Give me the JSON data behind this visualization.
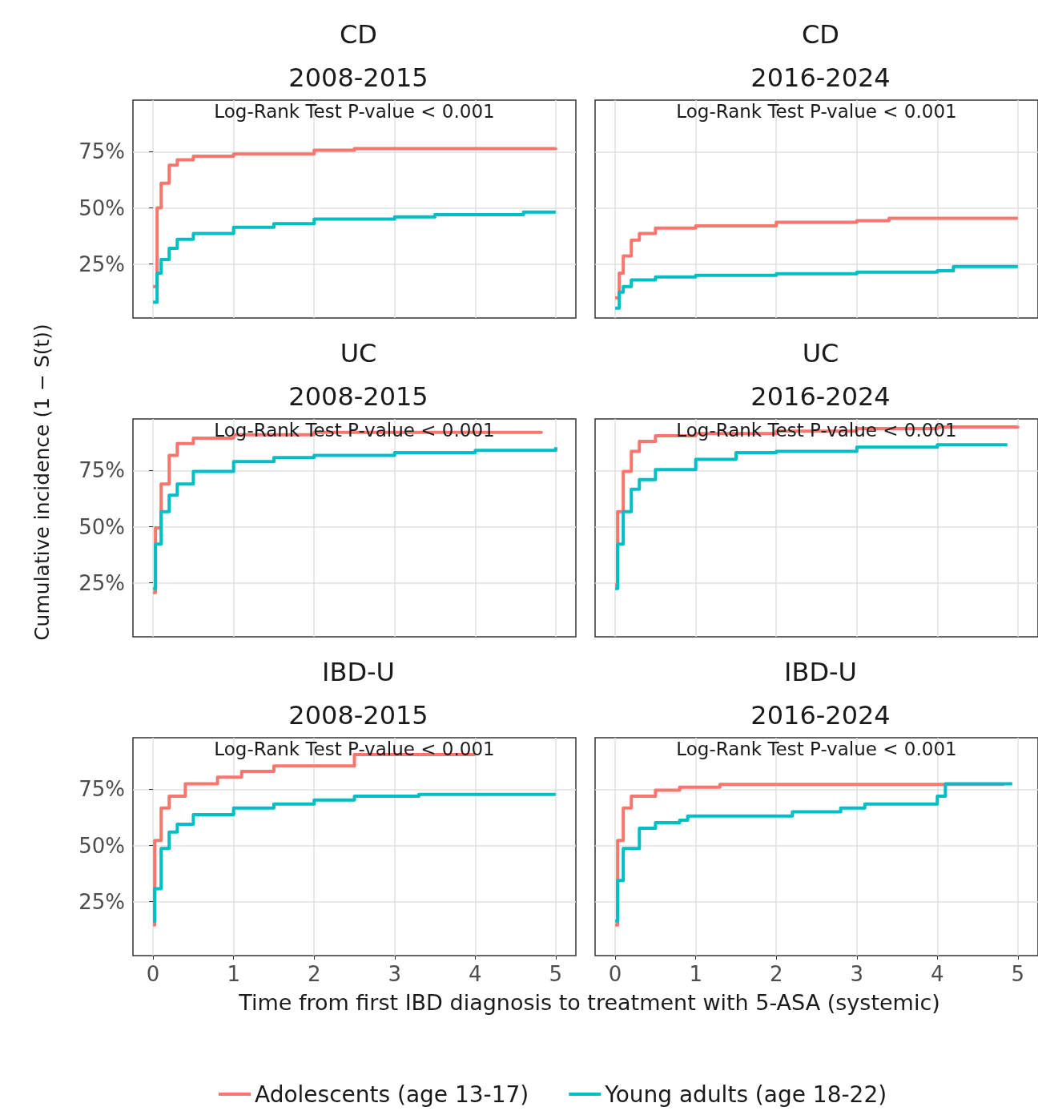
{
  "chart_data": [
    {
      "type": "step",
      "title": "CD",
      "subtitle": "2008-2015",
      "annotations": [
        "Log-Rank Test P-value < 0.001"
      ],
      "xlim": [
        -0.25,
        5.25
      ],
      "ylim": [
        1,
        98
      ],
      "xticks": [
        0,
        1,
        2,
        3,
        4,
        5
      ],
      "yticks": [
        {
          "value": 25,
          "label": "25%"
        },
        {
          "value": 50,
          "label": "50%"
        },
        {
          "value": 75,
          "label": "75%"
        }
      ],
      "grid": true,
      "tick_labels": "y",
      "legend": false,
      "series": [
        {
          "color": "#f8766d",
          "x": [
            0,
            0.05,
            0.1,
            0.2,
            0.3,
            0.5,
            1,
            2,
            2.5,
            5
          ],
          "values": [
            15,
            50,
            61,
            69,
            71.4,
            73,
            74,
            75.7,
            76.4,
            76.8
          ]
        },
        {
          "color": "#00bfc4",
          "x": [
            0,
            0.05,
            0.1,
            0.2,
            0.3,
            0.5,
            1,
            1.5,
            2,
            3,
            3.5,
            4.6,
            5
          ],
          "values": [
            8,
            21,
            27,
            32,
            36,
            38.6,
            41.4,
            43,
            45,
            46,
            47,
            48.2,
            48.2
          ]
        }
      ]
    },
    {
      "type": "step",
      "title": "CD",
      "subtitle": "2016-2024",
      "annotations": [
        "Log-Rank Test P-value < 0.001"
      ],
      "xlim": [
        -0.25,
        5.25
      ],
      "ylim": [
        1,
        98
      ],
      "xticks": [
        0,
        1,
        2,
        3,
        4,
        5
      ],
      "yticks": [
        {
          "value": 25,
          "label": null
        },
        {
          "value": 50,
          "label": null
        },
        {
          "value": 75,
          "label": null
        }
      ],
      "grid": true,
      "tick_labels": false,
      "legend": false,
      "series": [
        {
          "color": "#f8766d",
          "x": [
            0,
            0.05,
            0.1,
            0.2,
            0.3,
            0.5,
            1,
            2,
            3,
            3.4,
            5
          ],
          "values": [
            10,
            21,
            28.6,
            35.7,
            38.6,
            41,
            42,
            43.6,
            44.3,
            45.4,
            45.4
          ]
        },
        {
          "color": "#00bfc4",
          "x": [
            0,
            0.05,
            0.1,
            0.2,
            0.5,
            1,
            2,
            3,
            4,
            4.2,
            5
          ],
          "values": [
            5.4,
            12.5,
            15,
            17.9,
            19.3,
            20,
            20.7,
            21.4,
            22,
            23.9,
            23.9
          ]
        }
      ]
    },
    {
      "type": "step",
      "title": "UC",
      "subtitle": "2008-2015",
      "ylabel": "Cumulative incidence (1 − S(t))",
      "annotations": [
        "Log-Rank Test P-value < 0.001"
      ],
      "xlim": [
        -0.25,
        5.25
      ],
      "ylim": [
        1,
        98
      ],
      "xticks": [
        0,
        1,
        2,
        3,
        4,
        5
      ],
      "yticks": [
        {
          "value": 25,
          "label": "25%"
        },
        {
          "value": 50,
          "label": "50%"
        },
        {
          "value": 75,
          "label": "75%"
        }
      ],
      "grid": true,
      "tick_labels": "y",
      "legend": false,
      "series": [
        {
          "color": "#f8766d",
          "x": [
            0,
            0.03,
            0.1,
            0.2,
            0.3,
            0.5,
            1,
            2,
            4.82
          ],
          "values": [
            20.7,
            49.5,
            69,
            81.8,
            87,
            89.4,
            91,
            92,
            92.6
          ]
        },
        {
          "color": "#00bfc4",
          "x": [
            0,
            0.03,
            0.1,
            0.2,
            0.3,
            0.5,
            1,
            1.5,
            2,
            3,
            4,
            5
          ],
          "values": [
            22.5,
            42.3,
            56.7,
            64,
            69,
            74.6,
            79,
            80.8,
            81.8,
            83,
            84,
            85.4
          ]
        }
      ]
    },
    {
      "type": "step",
      "title": "UC",
      "subtitle": "2016-2024",
      "annotations": [
        "Log-Rank Test P-value < 0.001"
      ],
      "xlim": [
        -0.25,
        5.25
      ],
      "ylim": [
        1,
        98
      ],
      "xticks": [
        0,
        1,
        2,
        3,
        4,
        5
      ],
      "yticks": [
        {
          "value": 25,
          "label": null
        },
        {
          "value": 50,
          "label": null
        },
        {
          "value": 75,
          "label": null
        }
      ],
      "grid": true,
      "tick_labels": false,
      "legend": false,
      "series": [
        {
          "color": "#f8766d",
          "x": [
            0,
            0.03,
            0.1,
            0.2,
            0.3,
            0.5,
            1,
            2,
            3,
            4,
            5
          ],
          "values": [
            24,
            56.7,
            74.6,
            83.6,
            88,
            90.5,
            91.5,
            92.6,
            93.7,
            94.4,
            94.8
          ]
        },
        {
          "color": "#00bfc4",
          "x": [
            0,
            0.03,
            0.1,
            0.2,
            0.3,
            0.5,
            1,
            1.5,
            2,
            3,
            4,
            4.87
          ],
          "values": [
            22.5,
            42.3,
            56.7,
            66.7,
            71,
            75.4,
            80,
            83,
            83.6,
            85.4,
            86.5,
            86.5
          ]
        }
      ]
    },
    {
      "type": "step",
      "title": "IBD-U",
      "subtitle": "2008-2015",
      "annotations": [
        "Log-Rank Test P-value < 0.001"
      ],
      "xlim": [
        -0.25,
        5.25
      ],
      "ylim": [
        1,
        98
      ],
      "xticks": [
        0,
        1,
        2,
        3,
        4,
        5
      ],
      "yticks": [
        {
          "value": 25,
          "label": "25%"
        },
        {
          "value": 50,
          "label": "50%"
        },
        {
          "value": 75,
          "label": "75%"
        }
      ],
      "grid": true,
      "legend": false,
      "series": [
        {
          "color": "#f8766d",
          "x": [
            0,
            0.02,
            0.1,
            0.2,
            0.4,
            0.8,
            1.1,
            1.5,
            2.5,
            4
          ],
          "values": [
            14.6,
            52.3,
            66.7,
            72,
            77.5,
            80.4,
            83,
            85.4,
            90.5,
            90.5
          ]
        },
        {
          "color": "#00bfc4",
          "x": [
            0,
            0.02,
            0.1,
            0.2,
            0.3,
            0.5,
            1,
            1.5,
            2,
            2.5,
            3.3,
            5
          ],
          "values": [
            16.4,
            30.8,
            48.7,
            56,
            59.5,
            63.8,
            66.7,
            68.5,
            70.3,
            72,
            72.8,
            72.8
          ]
        }
      ]
    },
    {
      "type": "step",
      "title": "IBD-U",
      "subtitle": "2016-2024",
      "xlabel": "Time from first IBD diagnosis to treatment with 5-ASA (systemic)",
      "annotations": [
        "Log-Rank Test P-value < 0.001"
      ],
      "xlim": [
        -0.25,
        5.25
      ],
      "ylim": [
        1,
        98
      ],
      "xticks": [
        0,
        1,
        2,
        3,
        4,
        5
      ],
      "yticks": [
        {
          "value": 25,
          "label": null
        },
        {
          "value": 50,
          "label": null
        },
        {
          "value": 75,
          "label": null
        }
      ],
      "grid": true,
      "tick_labels": "x",
      "legend": "bottom",
      "series": [
        {
          "name": "Adolescents (age 13-17)",
          "color": "#f8766d",
          "x": [
            0,
            0.03,
            0.1,
            0.2,
            0.5,
            0.8,
            1.3,
            4.83
          ],
          "values": [
            14.6,
            52.3,
            66.7,
            72,
            74.6,
            76,
            77.2,
            77.2
          ]
        },
        {
          "name": "Young adults (age 18-22)",
          "color": "#00bfc4",
          "x": [
            0,
            0.03,
            0.1,
            0.3,
            0.5,
            0.8,
            0.9,
            2.2,
            2.8,
            3.1,
            4,
            4.1,
            4.93
          ],
          "values": [
            16.4,
            34.4,
            48.7,
            57.7,
            60.2,
            61.3,
            63.1,
            65,
            66.7,
            68.5,
            72,
            77.5,
            77.5
          ]
        }
      ]
    }
  ]
}
